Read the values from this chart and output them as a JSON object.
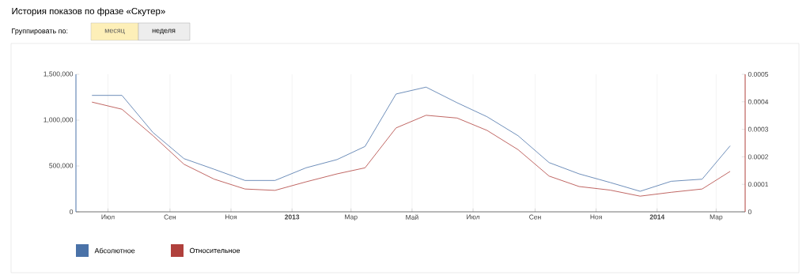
{
  "chart_data": {
    "type": "line",
    "title": "История показов по фразе «Скутер»",
    "annotations": [
      "Группировать по:",
      "месяц",
      "неделя"
    ],
    "x": [
      "2012-06-15",
      "2012-07-15",
      "2012-08-15",
      "2012-09-15",
      "2012-10-15",
      "2012-11-15",
      "2012-12-15",
      "2013-01-15",
      "2013-02-15",
      "2013-03-15",
      "2013-04-15",
      "2013-05-15",
      "2013-06-15",
      "2013-07-15",
      "2013-08-15",
      "2013-09-15",
      "2013-10-15",
      "2013-11-15",
      "2013-12-15",
      "2014-01-15",
      "2014-02-15",
      "2014-03-15"
    ],
    "series": [
      {
        "name": "Абсолютное",
        "color": "#4a72a8",
        "values": [
          1270000,
          1270000,
          865000,
          580000,
          465000,
          342000,
          342000,
          480000,
          570000,
          713000,
          1285000,
          1360000,
          1190000,
          1037000,
          830000,
          537000,
          414000,
          320000,
          224000,
          333000,
          356000,
          720000
        ]
      },
      {
        "name": "Относительное",
        "color": "#b0403c",
        "axis": "y2",
        "values": [
          0.000399,
          0.000373,
          0.000277,
          0.000173,
          0.000119,
          8.3e-05,
          7.8e-05,
          0.000109,
          0.000138,
          0.00016,
          0.000305,
          0.000351,
          0.000341,
          0.000296,
          0.000226,
          0.00013,
          9.2e-05,
          7.9e-05,
          5.7e-05,
          7.1e-05,
          8.3e-05,
          0.000147
        ]
      }
    ],
    "xlim": [
      "2012-05-30",
      "2014-03-30"
    ],
    "xticks": [
      {
        "value": "2012-07-01",
        "label": "Июл"
      },
      {
        "value": "2012-09-01",
        "label": "Сен"
      },
      {
        "value": "2012-11-01",
        "label": "Ноя"
      },
      {
        "value": "2013-01-01",
        "label": "**2013**"
      },
      {
        "value": "2013-03-01",
        "label": "Мар"
      },
      {
        "value": "2013-05-01",
        "label": "Май"
      },
      {
        "value": "2013-07-01",
        "label": "Июл"
      },
      {
        "value": "2013-09-01",
        "label": "Сен"
      },
      {
        "value": "2013-11-01",
        "label": "Ноя"
      },
      {
        "value": "2014-01-01",
        "label": "**2014**"
      },
      {
        "value": "2014-03-01",
        "label": "Мар"
      }
    ],
    "ylim": [
      0,
      1500000
    ],
    "yticks": [
      0,
      {
        "value": 500000,
        "label": "500,000"
      },
      {
        "value": 1000000,
        "label": "1,000,000"
      },
      {
        "value": 1500000,
        "label": "1,500,000"
      }
    ],
    "y2lim": [
      0,
      0.0005
    ],
    "y2ticks": [
      0,
      0.0001,
      0.0002,
      0.0003,
      0.0004,
      0.0005
    ],
    "grid": "x",
    "legend": "bottom left"
  }
}
